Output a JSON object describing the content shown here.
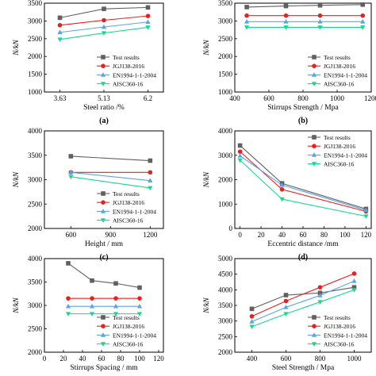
{
  "series_styles": [
    {
      "name": "Test results",
      "color": "#606060",
      "marker": "square"
    },
    {
      "name": "JGJ138-2016",
      "color": "#e8211f",
      "marker": "circle"
    },
    {
      "name": "EN1994-1-1-2004",
      "color": "#5aa4e6",
      "marker": "triangle-up"
    },
    {
      "name": "AISC360-16",
      "color": "#14d98f",
      "marker": "triangle-down"
    }
  ],
  "chart_data": [
    {
      "type": "line",
      "panel_label": "(a)",
      "xlabel": "Steel ratio /%",
      "ylabel": "N/kN",
      "x": [
        3.63,
        5.13,
        6.2
      ],
      "x_tick_labels": [
        "3.63",
        "5.13",
        "6.2"
      ],
      "x_categorical": true,
      "ylim": [
        1000,
        3500
      ],
      "yticks": [
        1000,
        1500,
        2000,
        2500,
        3000,
        3500
      ],
      "legend_position": "bottom-right",
      "series": [
        {
          "name": "Test results",
          "values": [
            3090,
            3340,
            3380
          ]
        },
        {
          "name": "JGJ138-2016",
          "values": [
            2880,
            3020,
            3140
          ]
        },
        {
          "name": "EN1994-1-1-2004",
          "values": [
            2680,
            2830,
            2970
          ]
        },
        {
          "name": "AISC360-16",
          "values": [
            2480,
            2660,
            2820
          ]
        }
      ]
    },
    {
      "type": "line",
      "panel_label": "(b)",
      "xlabel": "Stirrups Strength / Mpa",
      "ylabel": "N/kN",
      "x": [
        470,
        700,
        900,
        1150
      ],
      "xlim": [
        400,
        1200
      ],
      "xticks": [
        400,
        600,
        800,
        1000,
        1200
      ],
      "ylim": [
        1000,
        3500
      ],
      "yticks": [
        1000,
        1500,
        2000,
        2500,
        3000,
        3500
      ],
      "legend_position": "bottom-right",
      "series": [
        {
          "name": "Test results",
          "values": [
            3390,
            3420,
            3440,
            3460
          ]
        },
        {
          "name": "JGJ138-2016",
          "values": [
            3150,
            3150,
            3150,
            3150
          ]
        },
        {
          "name": "EN1994-1-1-2004",
          "values": [
            2980,
            2980,
            2980,
            2980
          ]
        },
        {
          "name": "AISC360-16",
          "values": [
            2820,
            2820,
            2820,
            2820
          ]
        }
      ]
    },
    {
      "type": "line",
      "panel_label": "(c)",
      "xlabel": "Height / mm",
      "ylabel": "N/kN",
      "x": [
        600,
        1200
      ],
      "xlim": [
        400,
        1300
      ],
      "xticks": [
        600,
        900,
        1200
      ],
      "ylim": [
        2000,
        4000
      ],
      "yticks": [
        2000,
        2500,
        3000,
        3500,
        4000
      ],
      "legend_position": "bottom-right",
      "series": [
        {
          "name": "Test results",
          "values": [
            3480,
            3390
          ]
        },
        {
          "name": "JGJ138-2016",
          "values": [
            3150,
            3150
          ]
        },
        {
          "name": "EN1994-1-1-2004",
          "values": [
            3150,
            2980
          ]
        },
        {
          "name": "AISC360-16",
          "values": [
            3060,
            2830
          ]
        }
      ]
    },
    {
      "type": "line",
      "panel_label": "(d)",
      "xlabel": "Eccentric distance /mm",
      "ylabel": "N/kN",
      "x": [
        0,
        40,
        120
      ],
      "xlim": [
        -5,
        125
      ],
      "xticks": [
        0,
        20,
        40,
        60,
        80,
        100,
        120
      ],
      "ylim": [
        0,
        4000
      ],
      "yticks": [
        0,
        1000,
        2000,
        3000,
        4000
      ],
      "legend_position": "top-right",
      "series": [
        {
          "name": "Test results",
          "values": [
            3400,
            1850,
            800
          ]
        },
        {
          "name": "JGJ138-2016",
          "values": [
            3150,
            1600,
            700
          ]
        },
        {
          "name": "EN1994-1-1-2004",
          "values": [
            2980,
            1780,
            750
          ]
        },
        {
          "name": "AISC360-16",
          "values": [
            2800,
            1200,
            500
          ]
        }
      ]
    },
    {
      "type": "line",
      "panel_label": "(e)",
      "xlabel": "Stirrups Spacing / mm",
      "ylabel": "N/kN",
      "x": [
        25,
        50,
        75,
        100
      ],
      "xlim": [
        0,
        125
      ],
      "xticks": [
        0,
        20,
        40,
        60,
        80,
        100,
        120
      ],
      "ylim": [
        2000,
        4000
      ],
      "yticks": [
        2000,
        2500,
        3000,
        3500,
        4000
      ],
      "legend_position": "bottom-right",
      "series": [
        {
          "name": "Test results",
          "values": [
            3900,
            3530,
            3470,
            3380
          ]
        },
        {
          "name": "JGJ138-2016",
          "values": [
            3150,
            3150,
            3150,
            3150
          ]
        },
        {
          "name": "EN1994-1-1-2004",
          "values": [
            2980,
            2980,
            2980,
            2980
          ]
        },
        {
          "name": "AISC360-16",
          "values": [
            2820,
            2820,
            2820,
            2820
          ]
        }
      ]
    },
    {
      "type": "line",
      "panel_label": "(f)",
      "xlabel": "Steel Strength / Mpa",
      "ylabel": "N/kN",
      "x": [
        400,
        600,
        800,
        1000
      ],
      "xlim": [
        300,
        1100
      ],
      "xticks": [
        400,
        600,
        800,
        1000
      ],
      "ylim": [
        2000,
        5000
      ],
      "yticks": [
        2000,
        2500,
        3000,
        3500,
        4000,
        4500,
        5000
      ],
      "legend_position": "bottom-right",
      "series": [
        {
          "name": "Test results",
          "values": [
            3390,
            3830,
            3900,
            4080
          ]
        },
        {
          "name": "JGJ138-2016",
          "values": [
            3150,
            3640,
            4080,
            4520
          ]
        },
        {
          "name": "EN1994-1-1-2004",
          "values": [
            2980,
            3440,
            3820,
            4280
          ]
        },
        {
          "name": "AISC360-16",
          "values": [
            2820,
            3230,
            3610,
            4000
          ]
        }
      ]
    }
  ]
}
